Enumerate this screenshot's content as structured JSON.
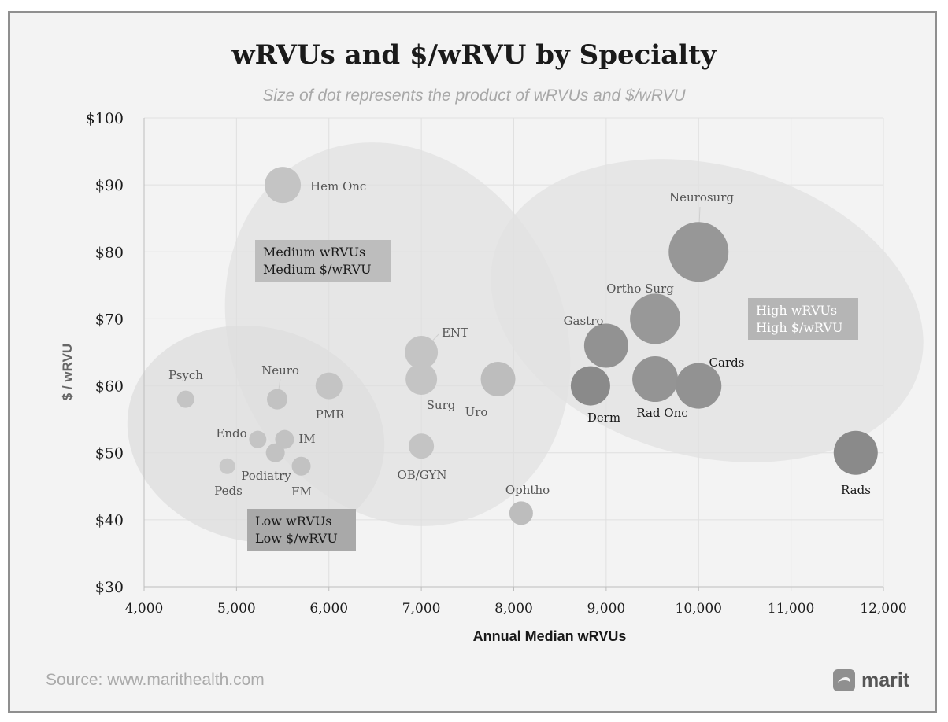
{
  "chart_data": {
    "type": "scatter",
    "title": "wRVUs and $/wRVU by Specialty",
    "subtitle": "Size of dot represents the product of wRVUs and $/wRVU",
    "xlabel": "Annual Median wRVUs",
    "ylabel": "$ / wRVU",
    "xlim": [
      4000,
      12000
    ],
    "ylim": [
      30,
      100
    ],
    "x_ticks": [
      "4,000",
      "5,000",
      "6,000",
      "7,000",
      "8,000",
      "9,000",
      "10,000",
      "11,000",
      "12,000"
    ],
    "y_ticks": [
      "$30",
      "$40",
      "$50",
      "$60",
      "$70",
      "$80",
      "$90",
      "$100"
    ],
    "grid": "vertical and horizontal",
    "points": [
      {
        "label": "Psych",
        "x": 4450,
        "y": 58
      },
      {
        "label": "Peds",
        "x": 4900,
        "y": 48
      },
      {
        "label": "Endo",
        "x": 5230,
        "y": 52
      },
      {
        "label": "Podiatry",
        "x": 5420,
        "y": 50
      },
      {
        "label": "IM",
        "x": 5520,
        "y": 52
      },
      {
        "label": "Neuro",
        "x": 5440,
        "y": 58
      },
      {
        "label": "FM",
        "x": 5700,
        "y": 48
      },
      {
        "label": "Hem Onc",
        "x": 5500,
        "y": 90
      },
      {
        "label": "PMR",
        "x": 6000,
        "y": 60
      },
      {
        "label": "ENT",
        "x": 7000,
        "y": 65
      },
      {
        "label": "Surg",
        "x": 7000,
        "y": 61
      },
      {
        "label": "OB/GYN",
        "x": 7000,
        "y": 51
      },
      {
        "label": "Uro",
        "x": 7830,
        "y": 61
      },
      {
        "label": "Ophtho",
        "x": 8080,
        "y": 41
      },
      {
        "label": "Gastro",
        "x": 9000,
        "y": 66
      },
      {
        "label": "Derm",
        "x": 8830,
        "y": 60
      },
      {
        "label": "Ortho Surg",
        "x": 9530,
        "y": 70
      },
      {
        "label": "Rad Onc",
        "x": 9530,
        "y": 61
      },
      {
        "label": "Cards",
        "x": 10000,
        "y": 60
      },
      {
        "label": "Neurosurg",
        "x": 10000,
        "y": 80
      },
      {
        "label": "Rads",
        "x": 11700,
        "y": 50
      }
    ],
    "regions": [
      {
        "lines": [
          "Low wRVUs",
          "Low $/wRVU"
        ]
      },
      {
        "lines": [
          "Medium wRVUs",
          "Medium $/wRVU"
        ]
      },
      {
        "lines": [
          "High wRVUs",
          "High $/wRVU"
        ]
      }
    ]
  },
  "footer": {
    "source": "Source: www.marithealth.com",
    "brand": "marit",
    "brand_icon": "marit-logo-icon"
  }
}
